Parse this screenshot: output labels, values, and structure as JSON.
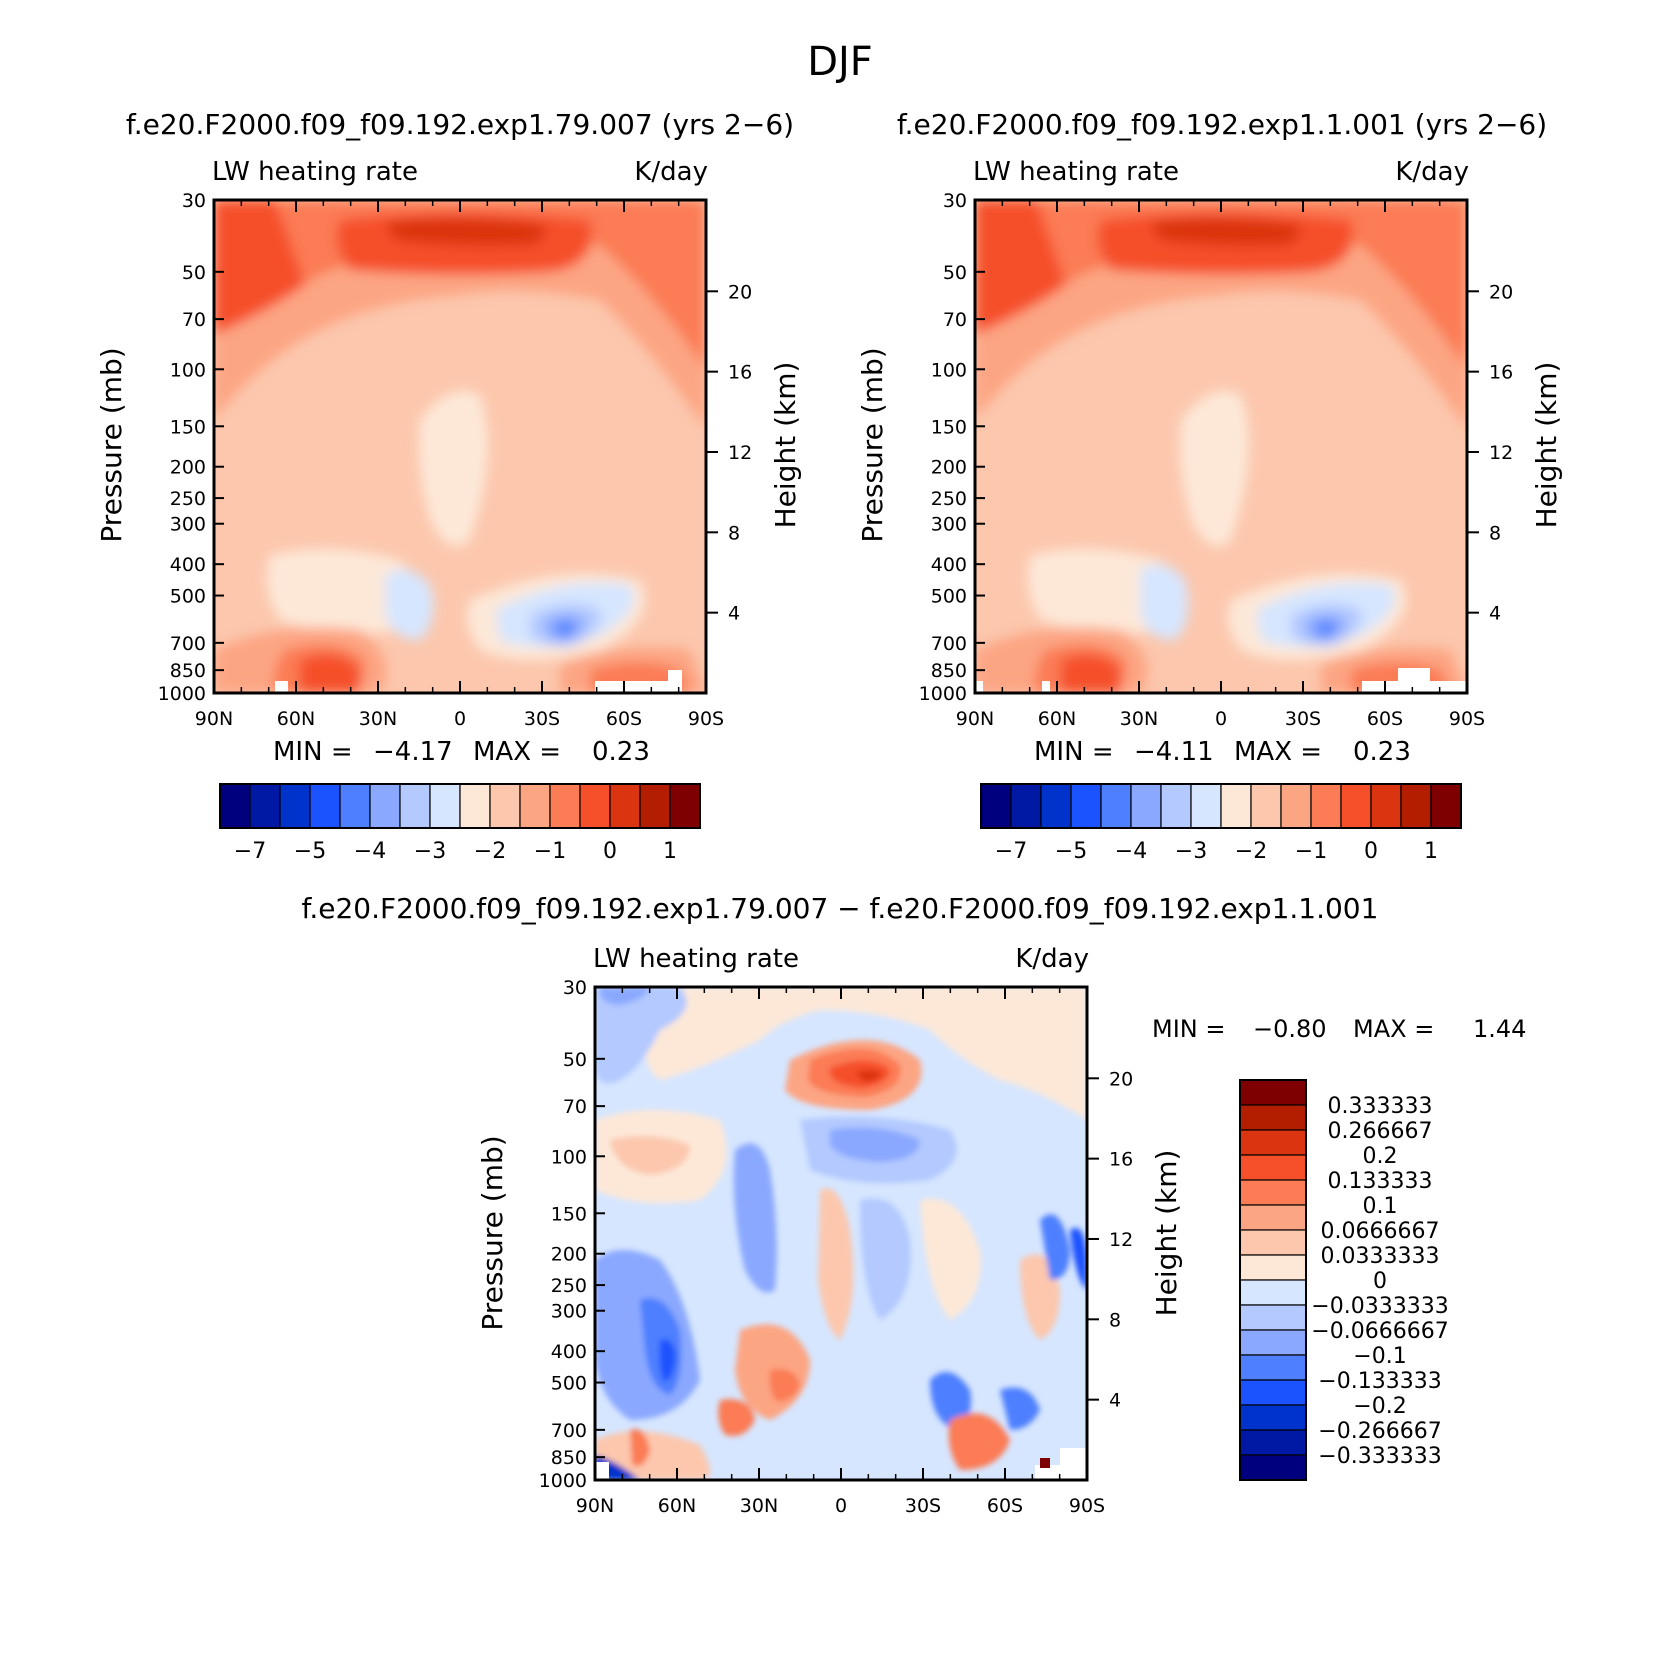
{
  "figure_title": "DJF",
  "colors": {
    "abs_palette": [
      "#00007f",
      "#0019a5",
      "#0033cc",
      "#1a53ff",
      "#4d7fff",
      "#8aa8ff",
      "#b3c9ff",
      "#d6e6ff",
      "#fde8d8",
      "#fcc7ad",
      "#fca583",
      "#fb7c55",
      "#f5502a",
      "#db3410",
      "#b31d00",
      "#7f0000"
    ],
    "diff_palette": [
      "#00007f",
      "#0019a5",
      "#0033cc",
      "#1a53ff",
      "#4d7fff",
      "#8aa8ff",
      "#b3c9ff",
      "#d6e6ff",
      "#fde8d8",
      "#fcc7ad",
      "#fca583",
      "#fb7c55",
      "#f5502a",
      "#db3410",
      "#b31d00",
      "#7f0000"
    ]
  },
  "panels": [
    {
      "id": "panel1",
      "case_title": "f.e20.F2000.f09_f09.192.exp1.79.007 (yrs 2−6)",
      "left_label": "LW heating rate",
      "right_label": "K/day",
      "min_label": "MIN =",
      "min_value": "−4.17",
      "max_label": "MAX =",
      "max_value": "0.23",
      "y_axis_label": "Pressure (mb)",
      "y2_axis_label": "Height (km)"
    },
    {
      "id": "panel2",
      "case_title": "f.e20.F2000.f09_f09.192.exp1.1.001 (yrs 2−6)",
      "left_label": "LW heating rate",
      "right_label": "K/day",
      "min_label": "MIN =",
      "min_value": "−4.11",
      "max_label": "MAX =",
      "max_value": "0.23",
      "y_axis_label": "Pressure (mb)",
      "y2_axis_label": "Height (km)"
    },
    {
      "id": "panel3",
      "case_title": "f.e20.F2000.f09_f09.192.exp1.79.007 − f.e20.F2000.f09_f09.192.exp1.1.001",
      "left_label": "LW heating rate",
      "right_label": "K/day",
      "min_label": "MIN =",
      "min_value": "−0.80",
      "max_label": "MAX =",
      "max_value": "1.44",
      "y_axis_label": "Pressure (mb)",
      "y2_axis_label": "Height (km)"
    }
  ],
  "chart_data": [
    {
      "type": "heatmap",
      "title": "f.e20.F2000.f09_f09.192.exp1.79.007 (yrs 2−6)",
      "field": "LW heating rate",
      "units": "K/day",
      "xlabel": "",
      "ylabel": "Pressure (mb)",
      "y2label": "Height (km)",
      "x_ticks": [
        "90N",
        "60N",
        "30N",
        "0",
        "30S",
        "60S",
        "90S"
      ],
      "y_ticks": [
        "30",
        "50",
        "70",
        "100",
        "150",
        "200",
        "250",
        "300",
        "400",
        "500",
        "700",
        "850",
        "1000"
      ],
      "y2_ticks": [
        "20",
        "16",
        "12",
        "8",
        "4"
      ],
      "y_scale": "log",
      "ylim": [
        1000,
        30
      ],
      "min": -4.17,
      "max": 0.23,
      "colorbar_labels": [
        "−7",
        "−5",
        "−4",
        "−3",
        "−2",
        "−1",
        "0",
        "1"
      ]
    },
    {
      "type": "heatmap",
      "title": "f.e20.F2000.f09_f09.192.exp1.1.001 (yrs 2−6)",
      "field": "LW heating rate",
      "units": "K/day",
      "xlabel": "",
      "ylabel": "Pressure (mb)",
      "y2label": "Height (km)",
      "x_ticks": [
        "90N",
        "60N",
        "30N",
        "0",
        "30S",
        "60S",
        "90S"
      ],
      "y_ticks": [
        "30",
        "50",
        "70",
        "100",
        "150",
        "200",
        "250",
        "300",
        "400",
        "500",
        "700",
        "850",
        "1000"
      ],
      "y2_ticks": [
        "20",
        "16",
        "12",
        "8",
        "4"
      ],
      "y_scale": "log",
      "ylim": [
        1000,
        30
      ],
      "min": -4.11,
      "max": 0.23,
      "colorbar_labels": [
        "−7",
        "−5",
        "−4",
        "−3",
        "−2",
        "−1",
        "0",
        "1"
      ]
    },
    {
      "type": "heatmap",
      "title": "f.e20.F2000.f09_f09.192.exp1.79.007 − f.e20.F2000.f09_f09.192.exp1.1.001",
      "field": "LW heating rate",
      "units": "K/day",
      "xlabel": "",
      "ylabel": "Pressure (mb)",
      "y2label": "Height (km)",
      "x_ticks": [
        "90N",
        "60N",
        "30N",
        "0",
        "30S",
        "60S",
        "90S"
      ],
      "y_ticks": [
        "30",
        "50",
        "70",
        "100",
        "150",
        "200",
        "250",
        "300",
        "400",
        "500",
        "700",
        "850",
        "1000"
      ],
      "y2_ticks": [
        "20",
        "16",
        "12",
        "8",
        "4"
      ],
      "y_scale": "log",
      "ylim": [
        1000,
        30
      ],
      "min": -0.8,
      "max": 1.44,
      "colorbar_labels": [
        "0.333333",
        "0.266667",
        "0.2",
        "0.133333",
        "0.1",
        "0.0666667",
        "0.0333333",
        "0",
        "−0.0333333",
        "−0.0666667",
        "−0.1",
        "−0.133333",
        "−0.2",
        "−0.266667",
        "−0.333333"
      ]
    }
  ]
}
